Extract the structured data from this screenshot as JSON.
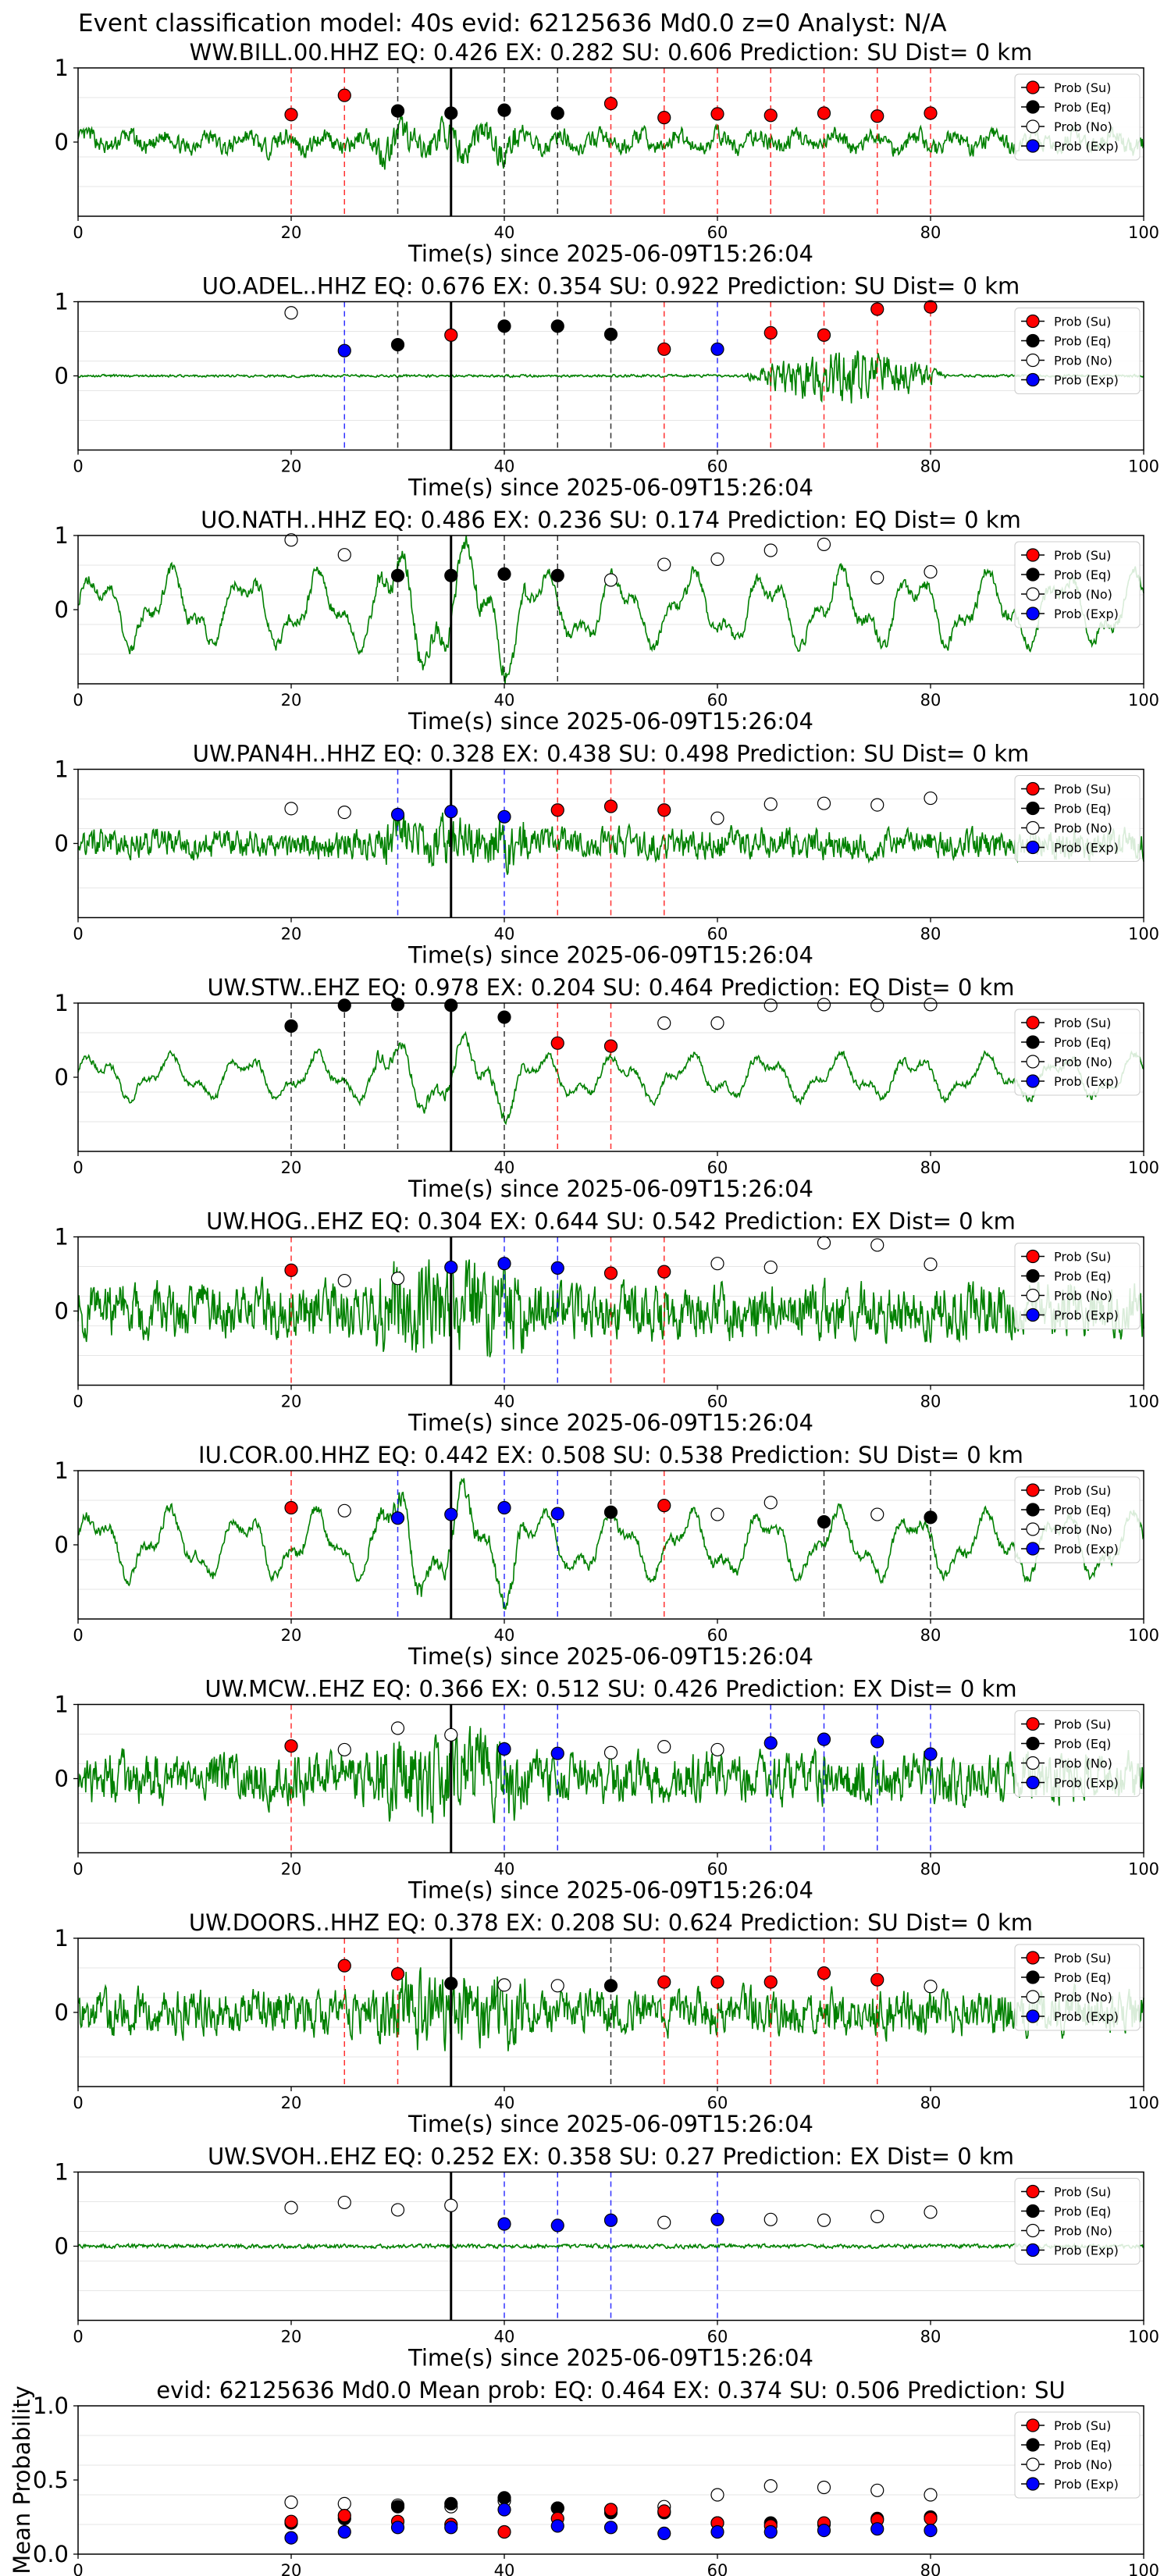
{
  "suptitle": "Event classification model: 40s evid: 62125636 Md0.0 z=0 Analyst: N/A",
  "legend_labels": [
    "Prob (Su)",
    "Prob (Eq)",
    "Prob (No)",
    "Prob (Exp)"
  ],
  "colors": {
    "su": "#ff0000",
    "eq": "#000000",
    "no": "#ffffff",
    "exp": "#0000ff",
    "trace": "#008000",
    "pick": "#000000"
  },
  "chart_data": [
    {
      "type": "line",
      "station": "WW.BILL.00.HHZ",
      "title": "WW.BILL.00.HHZ   EQ: 0.426  EX: 0.282  SU: 0.606   Prediction: SU    Dist= 0 km",
      "xlabel": "Time(s) since 2025-06-09T15:26:04",
      "xlim": [
        0,
        100
      ],
      "ylim": [
        -1,
        1
      ],
      "xticks": [
        "0",
        "20",
        "40",
        "60",
        "80",
        "100"
      ],
      "yticks": [
        "0",
        "1"
      ],
      "pick_time": 35,
      "noise": "mixed",
      "amplitude": 0.3,
      "points": [
        [
          20,
          0.37,
          "su"
        ],
        [
          25,
          0.63,
          "su"
        ],
        [
          30,
          0.42,
          "eq"
        ],
        [
          35,
          0.39,
          "eq"
        ],
        [
          40,
          0.43,
          "eq"
        ],
        [
          45,
          0.39,
          "eq"
        ],
        [
          50,
          0.52,
          "su"
        ],
        [
          55,
          0.33,
          "su"
        ],
        [
          60,
          0.38,
          "su"
        ],
        [
          65,
          0.36,
          "su"
        ],
        [
          70,
          0.39,
          "su"
        ],
        [
          75,
          0.35,
          "su"
        ],
        [
          80,
          0.39,
          "su"
        ]
      ]
    },
    {
      "type": "line",
      "station": "UO.ADEL..HHZ",
      "title": "UO.ADEL..HHZ   EQ: 0.676  EX: 0.354  SU: 0.922   Prediction: SU    Dist= 0 km",
      "xlabel": "Time(s) since 2025-06-09T15:26:04",
      "xlim": [
        0,
        100
      ],
      "ylim": [
        -1,
        1
      ],
      "xticks": [
        "0",
        "20",
        "40",
        "60",
        "80",
        "100"
      ],
      "yticks": [
        "0",
        "1"
      ],
      "pick_time": 35,
      "noise": "quiet",
      "amplitude": 0.05,
      "points": [
        [
          20,
          0.85,
          "no"
        ],
        [
          25,
          0.34,
          "exp"
        ],
        [
          30,
          0.42,
          "eq"
        ],
        [
          35,
          0.55,
          "su"
        ],
        [
          40,
          0.67,
          "eq"
        ],
        [
          45,
          0.67,
          "eq"
        ],
        [
          50,
          0.56,
          "eq"
        ],
        [
          55,
          0.36,
          "su"
        ],
        [
          60,
          0.36,
          "exp"
        ],
        [
          65,
          0.58,
          "su"
        ],
        [
          70,
          0.55,
          "su"
        ],
        [
          75,
          0.9,
          "su"
        ],
        [
          80,
          0.93,
          "su"
        ]
      ]
    },
    {
      "type": "line",
      "station": "UO.NATH..HHZ",
      "title": "UO.NATH..HHZ   EQ: 0.486  EX: 0.236  SU: 0.174   Prediction: EQ    Dist= 0 km",
      "xlabel": "Time(s) since 2025-06-09T15:26:04",
      "xlim": [
        0,
        100
      ],
      "ylim": [
        -1,
        1
      ],
      "xticks": [
        "0",
        "20",
        "40",
        "60",
        "80",
        "100"
      ],
      "yticks": [
        "0",
        "1"
      ],
      "pick_time": 35,
      "noise": "smooth",
      "amplitude": 0.5,
      "points": [
        [
          20,
          0.94,
          "no"
        ],
        [
          25,
          0.74,
          "no"
        ],
        [
          30,
          0.46,
          "eq"
        ],
        [
          35,
          0.46,
          "eq"
        ],
        [
          40,
          0.48,
          "eq"
        ],
        [
          45,
          0.46,
          "eq"
        ],
        [
          50,
          0.4,
          "no"
        ],
        [
          55,
          0.61,
          "no"
        ],
        [
          60,
          0.68,
          "no"
        ],
        [
          65,
          0.8,
          "no"
        ],
        [
          70,
          0.88,
          "no"
        ],
        [
          75,
          0.43,
          "no"
        ],
        [
          80,
          0.51,
          "no"
        ]
      ]
    },
    {
      "type": "line",
      "station": "UW.PAN4H..HHZ",
      "title": "UW.PAN4H..HHZ   EQ: 0.328  EX: 0.438  SU: 0.498   Prediction: SU    Dist= 0 km",
      "xlabel": "Time(s) since 2025-06-09T15:26:04",
      "xlim": [
        0,
        100
      ],
      "ylim": [
        -1,
        1
      ],
      "xticks": [
        "0",
        "20",
        "40",
        "60",
        "80",
        "100"
      ],
      "yticks": [
        "0",
        "1"
      ],
      "pick_time": 35,
      "noise": "noisy",
      "amplitude": 0.3,
      "points": [
        [
          20,
          0.47,
          "no"
        ],
        [
          25,
          0.42,
          "no"
        ],
        [
          30,
          0.39,
          "exp"
        ],
        [
          35,
          0.43,
          "exp"
        ],
        [
          40,
          0.36,
          "exp"
        ],
        [
          45,
          0.45,
          "su"
        ],
        [
          50,
          0.5,
          "su"
        ],
        [
          55,
          0.45,
          "su"
        ],
        [
          60,
          0.34,
          "no"
        ],
        [
          65,
          0.53,
          "no"
        ],
        [
          70,
          0.54,
          "no"
        ],
        [
          75,
          0.52,
          "no"
        ],
        [
          80,
          0.61,
          "no"
        ]
      ]
    },
    {
      "type": "line",
      "station": "UW.STW..EHZ",
      "title": "UW.STW..EHZ   EQ: 0.978  EX: 0.204  SU: 0.464   Prediction: EQ    Dist= 0 km",
      "xlabel": "Time(s) since 2025-06-09T15:26:04",
      "xlim": [
        0,
        100
      ],
      "ylim": [
        -1,
        1
      ],
      "xticks": [
        "0",
        "20",
        "40",
        "60",
        "80",
        "100"
      ],
      "yticks": [
        "0",
        "1"
      ],
      "pick_time": 35,
      "noise": "smooth",
      "amplitude": 0.3,
      "points": [
        [
          20,
          0.69,
          "eq"
        ],
        [
          25,
          0.97,
          "eq"
        ],
        [
          30,
          0.98,
          "eq"
        ],
        [
          35,
          0.97,
          "eq"
        ],
        [
          40,
          0.81,
          "eq"
        ],
        [
          45,
          0.46,
          "su"
        ],
        [
          50,
          0.42,
          "su"
        ],
        [
          55,
          0.73,
          "no"
        ],
        [
          60,
          0.73,
          "no"
        ],
        [
          65,
          0.97,
          "no"
        ],
        [
          70,
          0.98,
          "no"
        ],
        [
          75,
          0.97,
          "no"
        ],
        [
          80,
          0.98,
          "no"
        ]
      ]
    },
    {
      "type": "line",
      "station": "UW.HOG..EHZ",
      "title": "UW.HOG..EHZ   EQ: 0.304  EX: 0.644  SU: 0.542   Prediction: EX    Dist= 0 km",
      "xlabel": "Time(s) since 2025-06-09T15:26:04",
      "xlim": [
        0,
        100
      ],
      "ylim": [
        -1,
        1
      ],
      "xticks": [
        "0",
        "20",
        "40",
        "60",
        "80",
        "100"
      ],
      "yticks": [
        "0",
        "1"
      ],
      "pick_time": 35,
      "noise": "noisy",
      "amplitude": 0.55,
      "points": [
        [
          20,
          0.55,
          "su"
        ],
        [
          25,
          0.41,
          "no"
        ],
        [
          30,
          0.44,
          "no"
        ],
        [
          35,
          0.59,
          "exp"
        ],
        [
          40,
          0.64,
          "exp"
        ],
        [
          45,
          0.58,
          "exp"
        ],
        [
          50,
          0.51,
          "su"
        ],
        [
          55,
          0.53,
          "su"
        ],
        [
          60,
          0.64,
          "no"
        ],
        [
          65,
          0.59,
          "no"
        ],
        [
          70,
          0.92,
          "no"
        ],
        [
          75,
          0.89,
          "no"
        ],
        [
          80,
          0.63,
          "no"
        ]
      ]
    },
    {
      "type": "line",
      "station": "IU.COR.00.HHZ",
      "title": "IU.COR.00.HHZ   EQ: 0.442  EX: 0.508  SU: 0.538   Prediction: SU    Dist= 0 km",
      "xlabel": "Time(s) since 2025-06-09T15:26:04",
      "xlim": [
        0,
        100
      ],
      "ylim": [
        -1,
        1
      ],
      "xticks": [
        "0",
        "20",
        "40",
        "60",
        "80",
        "100"
      ],
      "yticks": [
        "0",
        "1"
      ],
      "pick_time": 35,
      "noise": "smooth",
      "amplitude": 0.45,
      "points": [
        [
          20,
          0.5,
          "su"
        ],
        [
          25,
          0.46,
          "no"
        ],
        [
          30,
          0.36,
          "exp"
        ],
        [
          35,
          0.41,
          "exp"
        ],
        [
          40,
          0.5,
          "exp"
        ],
        [
          45,
          0.42,
          "exp"
        ],
        [
          50,
          0.44,
          "eq"
        ],
        [
          55,
          0.53,
          "su"
        ],
        [
          60,
          0.41,
          "no"
        ],
        [
          65,
          0.57,
          "no"
        ],
        [
          70,
          0.31,
          "eq"
        ],
        [
          75,
          0.41,
          "no"
        ],
        [
          80,
          0.37,
          "eq"
        ]
      ]
    },
    {
      "type": "line",
      "station": "UW.MCW..EHZ",
      "title": "UW.MCW..EHZ   EQ: 0.366  EX: 0.512  SU: 0.426   Prediction: EX    Dist= 0 km",
      "xlabel": "Time(s) since 2025-06-09T15:26:04",
      "xlim": [
        0,
        100
      ],
      "ylim": [
        -1,
        1
      ],
      "xticks": [
        "0",
        "20",
        "40",
        "60",
        "80",
        "100"
      ],
      "yticks": [
        "0",
        "1"
      ],
      "pick_time": 35,
      "noise": "noisy",
      "amplitude": 0.5,
      "points": [
        [
          20,
          0.44,
          "su"
        ],
        [
          25,
          0.39,
          "no"
        ],
        [
          30,
          0.68,
          "no"
        ],
        [
          35,
          0.59,
          "no"
        ],
        [
          40,
          0.4,
          "exp"
        ],
        [
          45,
          0.34,
          "exp"
        ],
        [
          50,
          0.35,
          "no"
        ],
        [
          55,
          0.43,
          "no"
        ],
        [
          60,
          0.39,
          "no"
        ],
        [
          65,
          0.48,
          "exp"
        ],
        [
          70,
          0.53,
          "exp"
        ],
        [
          75,
          0.5,
          "exp"
        ],
        [
          80,
          0.33,
          "exp"
        ]
      ]
    },
    {
      "type": "line",
      "station": "UW.DOORS..HHZ",
      "title": "UW.DOORS..HHZ   EQ: 0.378  EX: 0.208  SU: 0.624   Prediction: SU    Dist= 0 km",
      "xlabel": "Time(s) since 2025-06-09T15:26:04",
      "xlim": [
        0,
        100
      ],
      "ylim": [
        -1,
        1
      ],
      "xticks": [
        "0",
        "20",
        "40",
        "60",
        "80",
        "100"
      ],
      "yticks": [
        "0",
        "1"
      ],
      "pick_time": 35,
      "noise": "noisy",
      "amplitude": 0.45,
      "points": [
        [
          25,
          0.63,
          "su"
        ],
        [
          30,
          0.52,
          "su"
        ],
        [
          35,
          0.39,
          "eq"
        ],
        [
          40,
          0.37,
          "no"
        ],
        [
          45,
          0.36,
          "no"
        ],
        [
          50,
          0.36,
          "eq"
        ],
        [
          55,
          0.41,
          "su"
        ],
        [
          60,
          0.41,
          "su"
        ],
        [
          65,
          0.41,
          "su"
        ],
        [
          70,
          0.53,
          "su"
        ],
        [
          75,
          0.44,
          "su"
        ],
        [
          80,
          0.35,
          "no"
        ]
      ]
    },
    {
      "type": "line",
      "station": "UW.SVOH..EHZ",
      "title": "UW.SVOH..EHZ   EQ: 0.252  EX: 0.358  SU: 0.27   Prediction: EX    Dist= 0 km",
      "xlabel": "Time(s) since 2025-06-09T15:26:04",
      "xlim": [
        0,
        100
      ],
      "ylim": [
        -1,
        1
      ],
      "xticks": [
        "0",
        "20",
        "40",
        "60",
        "80",
        "100"
      ],
      "yticks": [
        "0",
        "1"
      ],
      "pick_time": 35,
      "noise": "quiet",
      "amplitude": 0.08,
      "points": [
        [
          20,
          0.52,
          "no"
        ],
        [
          25,
          0.59,
          "no"
        ],
        [
          30,
          0.49,
          "no"
        ],
        [
          35,
          0.55,
          "no"
        ],
        [
          40,
          0.3,
          "exp"
        ],
        [
          45,
          0.28,
          "exp"
        ],
        [
          50,
          0.35,
          "exp"
        ],
        [
          55,
          0.32,
          "no"
        ],
        [
          60,
          0.36,
          "exp"
        ],
        [
          65,
          0.36,
          "no"
        ],
        [
          70,
          0.35,
          "no"
        ],
        [
          75,
          0.4,
          "no"
        ],
        [
          80,
          0.46,
          "no"
        ]
      ]
    },
    {
      "type": "scatter",
      "station": "mean",
      "title": "evid: 62125636  Md0.0   Mean prob:   EQ: 0.464  EX: 0.374  SU: 0.506   Prediction: SU",
      "xlabel": "",
      "ylabel": "Mean Probability",
      "xlim": [
        0,
        100
      ],
      "ylim": [
        0,
        1
      ],
      "xticks": [
        "0",
        "20",
        "40",
        "60",
        "80",
        "100"
      ],
      "yticks": [
        "0.0",
        "0.5",
        "1.0"
      ],
      "x": [
        20,
        25,
        30,
        35,
        40,
        45,
        50,
        55,
        60,
        65,
        70,
        75,
        80
      ],
      "series": [
        {
          "key": "no",
          "values": [
            0.35,
            0.34,
            0.33,
            0.32,
            0.36,
            0.31,
            0.3,
            0.32,
            0.4,
            0.46,
            0.45,
            0.43,
            0.4
          ]
        },
        {
          "key": "eq",
          "values": [
            0.21,
            0.24,
            0.32,
            0.34,
            0.38,
            0.31,
            0.28,
            0.28,
            0.21,
            0.21,
            0.2,
            0.24,
            0.25
          ]
        },
        {
          "key": "su",
          "values": [
            0.22,
            0.26,
            0.22,
            0.2,
            0.15,
            0.24,
            0.3,
            0.29,
            0.21,
            0.19,
            0.21,
            0.23,
            0.24
          ]
        },
        {
          "key": "exp",
          "values": [
            0.11,
            0.15,
            0.18,
            0.18,
            0.3,
            0.19,
            0.18,
            0.14,
            0.15,
            0.15,
            0.16,
            0.17,
            0.16
          ]
        }
      ]
    }
  ]
}
